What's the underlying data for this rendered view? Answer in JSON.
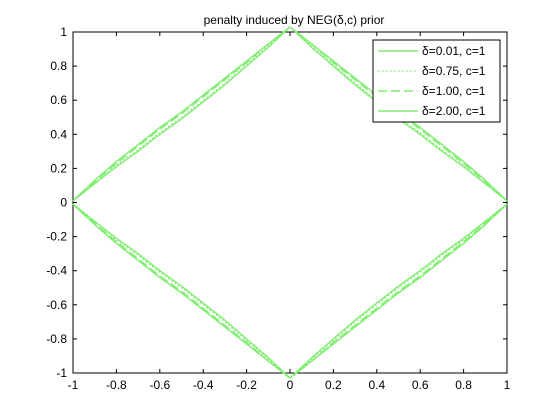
{
  "chart_data": {
    "type": "line",
    "title": "penalty induced by NEG(δ,c) prior",
    "xlabel": "",
    "ylabel": "",
    "xlim": [
      -1,
      1
    ],
    "ylim": [
      -1,
      1
    ],
    "grid": false,
    "legend_position": "top-right",
    "line_color": "#80ee70",
    "xticks": [
      -1,
      -0.8,
      -0.6,
      -0.4,
      -0.2,
      0,
      0.2,
      0.4,
      0.6,
      0.8,
      1
    ],
    "xtick_labels": [
      "-1",
      "-0.8",
      "-0.6",
      "-0.4",
      "-0.2",
      "0",
      "0.2",
      "0.4",
      "0.6",
      "0.8",
      "1"
    ],
    "yticks": [
      -1,
      -0.8,
      -0.6,
      -0.4,
      -0.2,
      0,
      0.2,
      0.4,
      0.6,
      0.8,
      1
    ],
    "ytick_labels": [
      "-1",
      "-0.8",
      "-0.6",
      "-0.4",
      "-0.2",
      "0",
      "0.2",
      "0.4",
      "0.6",
      "0.8",
      "1"
    ],
    "series": [
      {
        "name": "δ=0.01, c=1",
        "line_style": "solid",
        "x": [
          0,
          0.1,
          0.2,
          0.3,
          0.4,
          0.5,
          0.6,
          0.7,
          0.8,
          0.9,
          1
        ],
        "y": [
          1.03,
          0.91,
          0.8,
          0.69,
          0.59,
          0.49,
          0.4,
          0.3,
          0.21,
          0.11,
          0.01
        ]
      },
      {
        "name": "δ=0.75, c=1",
        "line_style": "dotted",
        "x": [
          0,
          0.1,
          0.2,
          0.3,
          0.4,
          0.5,
          0.6,
          0.7,
          0.8,
          0.9,
          1
        ],
        "y": [
          1.03,
          0.92,
          0.81,
          0.7,
          0.6,
          0.5,
          0.41,
          0.31,
          0.22,
          0.11,
          0.01
        ]
      },
      {
        "name": "δ=1.00, c=1",
        "line_style": "dashed",
        "x": [
          0,
          0.1,
          0.2,
          0.3,
          0.4,
          0.5,
          0.6,
          0.7,
          0.8,
          0.9,
          1
        ],
        "y": [
          1.03,
          0.93,
          0.82,
          0.72,
          0.62,
          0.52,
          0.43,
          0.33,
          0.23,
          0.12,
          0.01
        ]
      },
      {
        "name": "δ=2.00, c=1",
        "line_style": "solid",
        "x": [
          0,
          0.1,
          0.2,
          0.3,
          0.4,
          0.5,
          0.6,
          0.7,
          0.8,
          0.9,
          1
        ],
        "y": [
          1.03,
          0.93,
          0.83,
          0.73,
          0.63,
          0.53,
          0.44,
          0.34,
          0.24,
          0.13,
          0.01
        ]
      }
    ]
  }
}
